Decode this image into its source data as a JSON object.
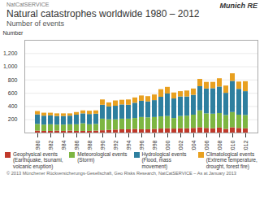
{
  "chart_data": {
    "type": "bar",
    "stacked": true,
    "title": "Natural catastrophes worldwide 1980 – 2012",
    "subtitle": "Number of events",
    "y_label": "Number",
    "annotations": [
      "NatCatSERVICE",
      "Munich RE",
      "© 2013 Münchener Rückversicherungs-Gesellschaft, Geo Risks Research, NatCatSERVICE – As at January 2013"
    ],
    "categories": [
      "1980",
      null,
      "1982",
      null,
      "1984",
      null,
      "1986",
      null,
      "1988",
      null,
      "1990",
      null,
      "1992",
      null,
      "1994",
      null,
      "1996",
      null,
      "1998",
      null,
      "2000",
      null,
      "2002",
      null,
      "2004",
      null,
      "2006",
      null,
      "2008",
      null,
      "2010",
      null,
      "2012"
    ],
    "series": [
      {
        "name": "Geophysical events\n(Earthquake, tsunami,\nvolcanic eruption)",
        "color": "#c0392b",
        "values": [
          30,
          25,
          25,
          30,
          25,
          30,
          25,
          25,
          25,
          30,
          35,
          40,
          45,
          50,
          50,
          55,
          50,
          50,
          55,
          60,
          65,
          60,
          65,
          65,
          70,
          80,
          70,
          65,
          75,
          55,
          80,
          70,
          65
        ]
      },
      {
        "name": "Meteorological events\n(Storm)",
        "color": "#7db642",
        "values": [
          100,
          95,
          100,
          90,
          95,
          95,
          100,
          115,
          100,
          100,
          175,
          160,
          155,
          160,
          160,
          165,
          185,
          180,
          180,
          185,
          185,
          160,
          185,
          190,
          200,
          255,
          220,
          220,
          220,
          210,
          230,
          200,
          200
        ]
      },
      {
        "name": "Hydrological events\n(Flood, mass\nmovement)",
        "color": "#2e7f9f",
        "values": [
          145,
          135,
          135,
          130,
          130,
          130,
          145,
          150,
          155,
          155,
          210,
          195,
          205,
          215,
          210,
          230,
          245,
          240,
          255,
          295,
          340,
          295,
          295,
          290,
          300,
          365,
          375,
          385,
          400,
          335,
          470,
          390,
          360
        ]
      },
      {
        "name": "Climatological events\n(Extreme temperature,\ndrought, forest fire)",
        "color": "#e8a020",
        "values": [
          50,
          45,
          40,
          40,
          40,
          35,
          40,
          45,
          50,
          50,
          80,
          60,
          80,
          70,
          80,
          80,
          80,
          80,
          85,
          115,
          100,
          90,
          80,
          90,
          95,
          110,
          100,
          95,
          125,
          110,
          115,
          110,
          150
        ]
      }
    ],
    "ylim": [
      0,
      1400
    ],
    "yticks": [
      200,
      400,
      600,
      800,
      1000,
      1200
    ],
    "grid": true,
    "legend": "lower left"
  }
}
